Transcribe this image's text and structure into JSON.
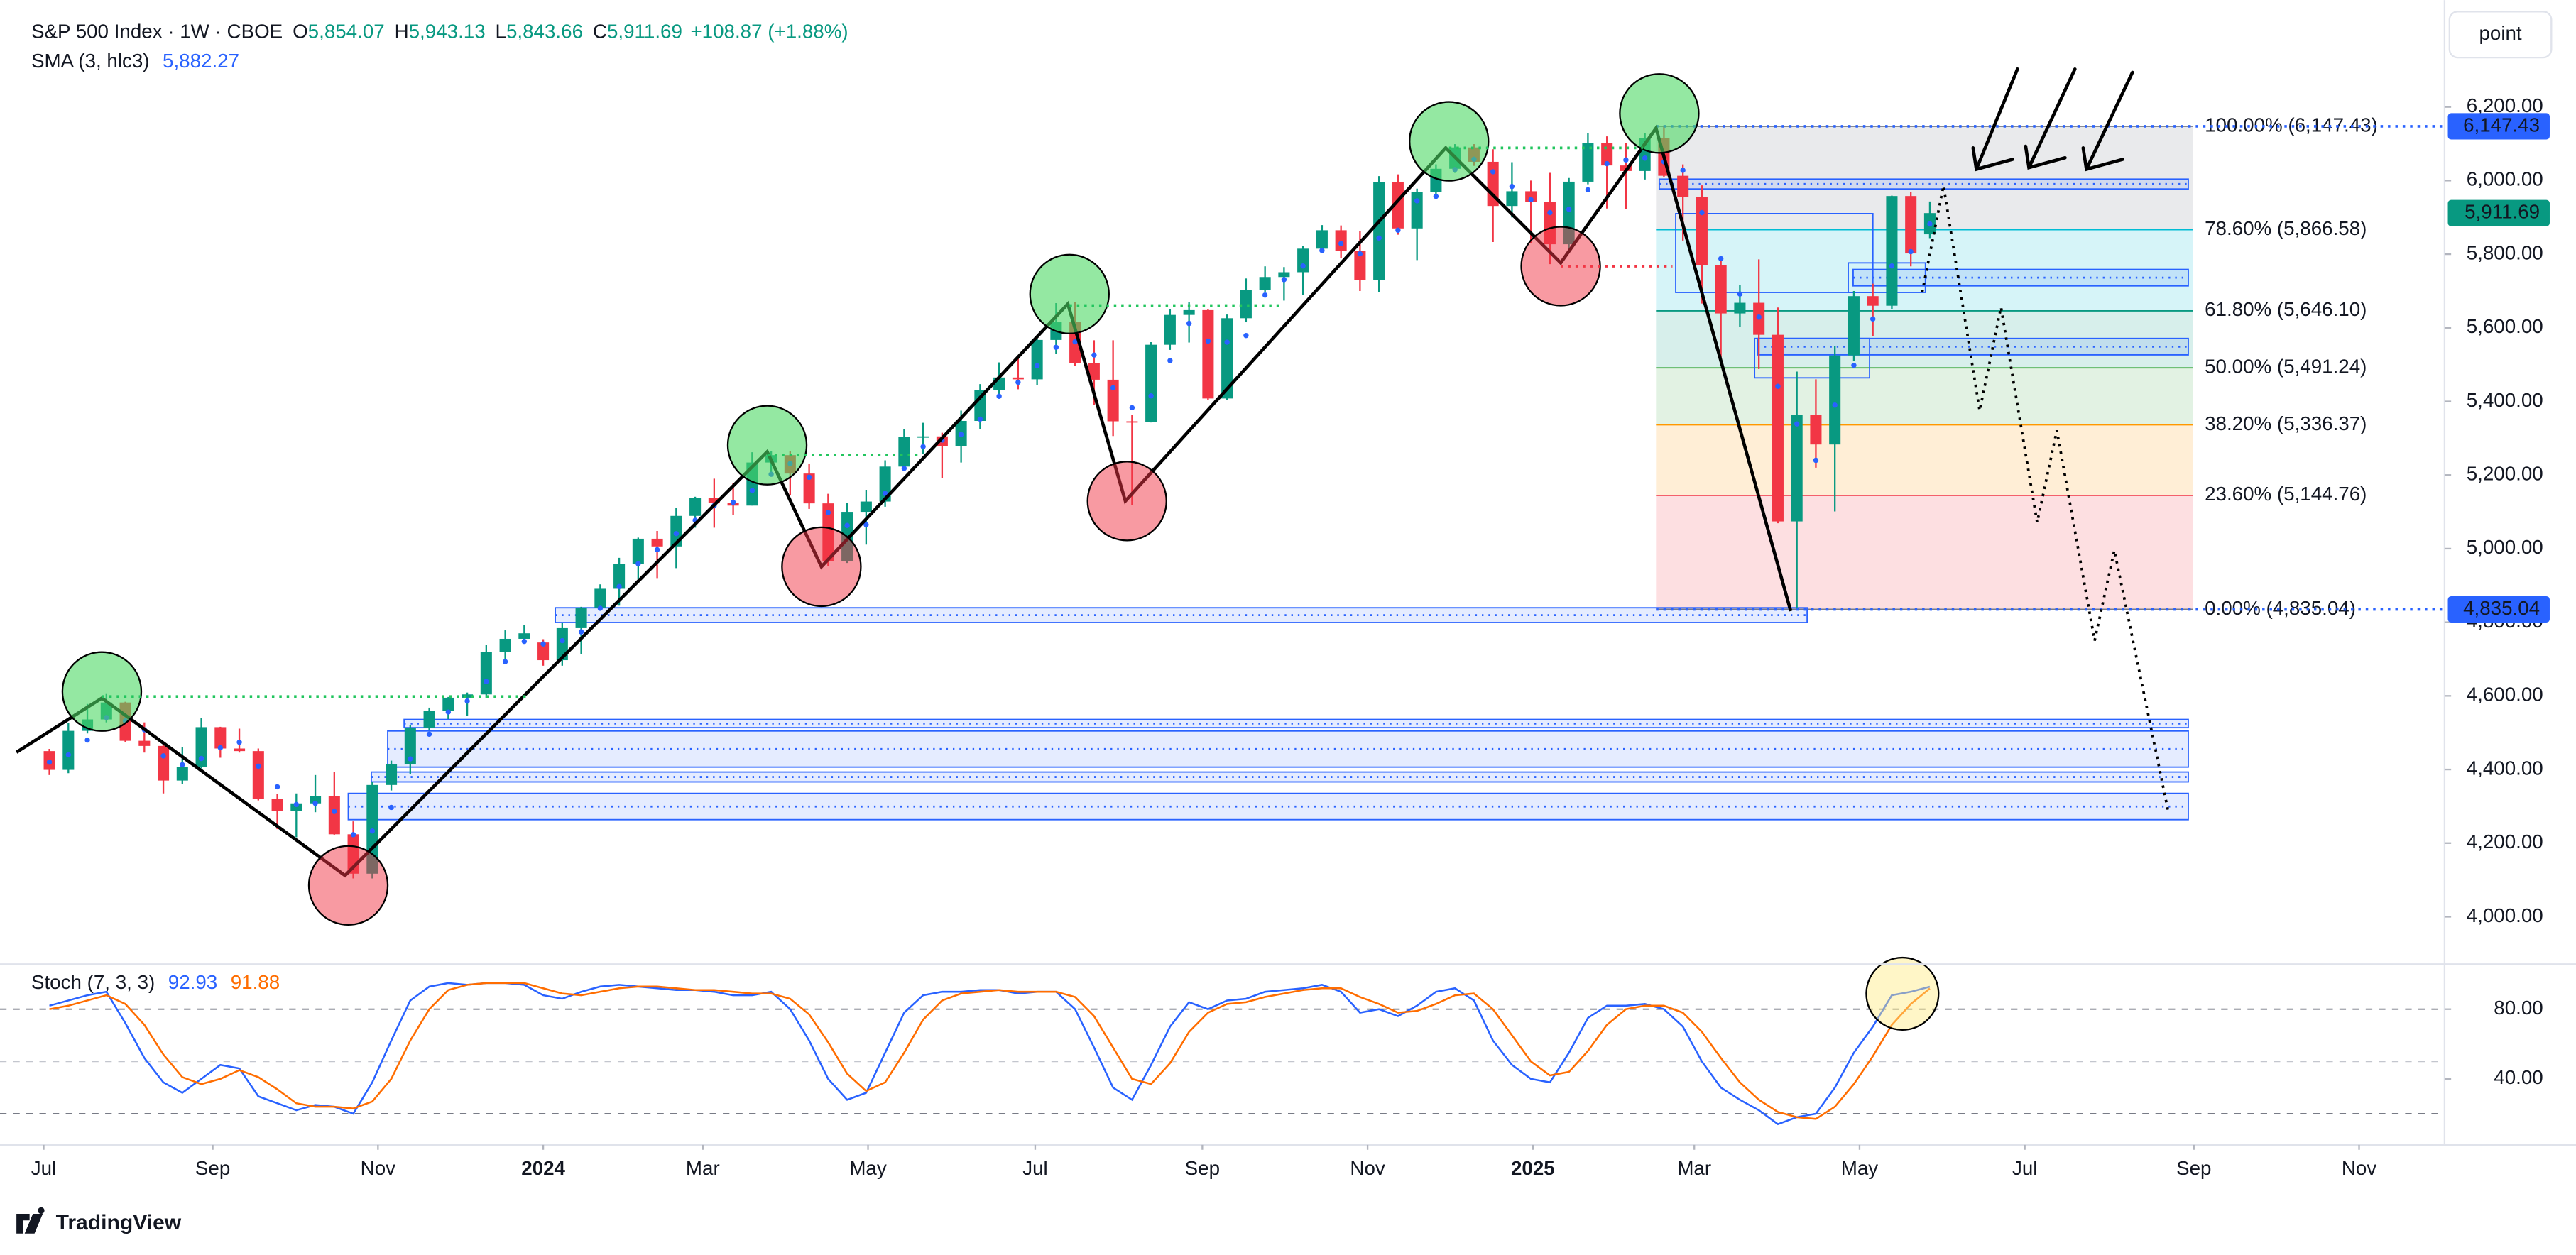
{
  "chart_data": [
    {
      "type": "candlestick",
      "title": "S&P 500 Index · 1W · CBOE",
      "ohlc_legend": [
        {
          "label": "O",
          "value": "5,854.07"
        },
        {
          "label": "H",
          "value": "5,943.13"
        },
        {
          "label": "L",
          "value": "5,843.66"
        },
        {
          "label": "C",
          "value": "5,911.69"
        }
      ],
      "change": "+108.87 (+1.88%)",
      "scale_mode": "point",
      "up_color": "#089981",
      "down_color": "#f23645",
      "xlim": [
        -2.6,
        126.1
      ],
      "ylim": [
        3880,
        6468
      ],
      "yticks": [
        {
          "value": 4000,
          "label": "4,000.00"
        },
        {
          "value": 4200,
          "label": "4,200.00"
        },
        {
          "value": 4400,
          "label": "4,400.00"
        },
        {
          "value": 4600,
          "label": "4,600.00"
        },
        {
          "value": 4800,
          "label": "4,800.00"
        },
        {
          "value": 5000,
          "label": "5,000.00"
        },
        {
          "value": 5200,
          "label": "5,200.00"
        },
        {
          "value": 5400,
          "label": "5,400.00"
        },
        {
          "value": 5600,
          "label": "5,600.00"
        },
        {
          "value": 5800,
          "label": "5,800.00"
        },
        {
          "value": 6000,
          "label": "6,000.00"
        },
        {
          "value": 6200,
          "label": "6,200.00"
        }
      ],
      "grid": false,
      "candles": [
        [
          4450,
          4456,
          4385,
          4399
        ],
        [
          4399,
          4527,
          4390,
          4505
        ],
        [
          4505,
          4578,
          4498,
          4536
        ],
        [
          4536,
          4607,
          4528,
          4582
        ],
        [
          4582,
          4584,
          4475,
          4478
        ],
        [
          4478,
          4528,
          4446,
          4464
        ],
        [
          4464,
          4474,
          4335,
          4370
        ],
        [
          4370,
          4461,
          4360,
          4406
        ],
        [
          4406,
          4541,
          4403,
          4515
        ],
        [
          4515,
          4516,
          4432,
          4457
        ],
        [
          4457,
          4511,
          4446,
          4450
        ],
        [
          4450,
          4457,
          4316,
          4320
        ],
        [
          4320,
          4334,
          4238,
          4288
        ],
        [
          4288,
          4335,
          4216,
          4308
        ],
        [
          4308,
          4385,
          4284,
          4327
        ],
        [
          4327,
          4394,
          4223,
          4224
        ],
        [
          4224,
          4259,
          4104,
          4117
        ],
        [
          4117,
          4366,
          4104,
          4358
        ],
        [
          4358,
          4424,
          4343,
          4415
        ],
        [
          4415,
          4521,
          4388,
          4514
        ],
        [
          4514,
          4568,
          4506,
          4559
        ],
        [
          4559,
          4597,
          4537,
          4595
        ],
        [
          4595,
          4609,
          4546,
          4604
        ],
        [
          4604,
          4739,
          4593,
          4719
        ],
        [
          4719,
          4778,
          4699,
          4755
        ],
        [
          4755,
          4793,
          4751,
          4770
        ],
        [
          4745,
          4754,
          4682,
          4697
        ],
        [
          4697,
          4798,
          4682,
          4784
        ],
        [
          4784,
          4842,
          4714,
          4840
        ],
        [
          4840,
          4903,
          4837,
          4891
        ],
        [
          4891,
          4975,
          4845,
          4959
        ],
        [
          4959,
          5030,
          4918,
          5027
        ],
        [
          5027,
          5048,
          4920,
          5006
        ],
        [
          5006,
          5111,
          4947,
          5089
        ],
        [
          5089,
          5141,
          5057,
          5137
        ],
        [
          5137,
          5190,
          5057,
          5124
        ],
        [
          5124,
          5179,
          5091,
          5117
        ],
        [
          5117,
          5262,
          5117,
          5234
        ],
        [
          5234,
          5264,
          5204,
          5254
        ],
        [
          5254,
          5264,
          5146,
          5204
        ],
        [
          5204,
          5230,
          5108,
          5123
        ],
        [
          5123,
          5149,
          4953,
          4967
        ],
        [
          4967,
          5124,
          4961,
          5100
        ],
        [
          5100,
          5160,
          5011,
          5128
        ],
        [
          5128,
          5240,
          5114,
          5223
        ],
        [
          5223,
          5325,
          5211,
          5303
        ],
        [
          5303,
          5342,
          5257,
          5305
        ],
        [
          5305,
          5315,
          5191,
          5278
        ],
        [
          5278,
          5375,
          5234,
          5347
        ],
        [
          5347,
          5447,
          5325,
          5431
        ],
        [
          5431,
          5506,
          5420,
          5465
        ],
        [
          5465,
          5524,
          5433,
          5460
        ],
        [
          5460,
          5570,
          5445,
          5567
        ],
        [
          5567,
          5667,
          5529,
          5615
        ],
        [
          5615,
          5669,
          5497,
          5505
        ],
        [
          5505,
          5566,
          5390,
          5459
        ],
        [
          5459,
          5566,
          5306,
          5346
        ],
        [
          5346,
          5364,
          5119,
          5344
        ],
        [
          5344,
          5561,
          5343,
          5554
        ],
        [
          5554,
          5651,
          5540,
          5635
        ],
        [
          5635,
          5669,
          5560,
          5648
        ],
        [
          5648,
          5651,
          5403,
          5408
        ],
        [
          5408,
          5636,
          5403,
          5626
        ],
        [
          5626,
          5734,
          5615,
          5703
        ],
        [
          5703,
          5767,
          5698,
          5738
        ],
        [
          5738,
          5765,
          5674,
          5751
        ],
        [
          5751,
          5822,
          5690,
          5815
        ],
        [
          5815,
          5879,
          5805,
          5865
        ],
        [
          5865,
          5878,
          5790,
          5808
        ],
        [
          5808,
          5862,
          5700,
          5729
        ],
        [
          5729,
          6012,
          5696,
          5995
        ],
        [
          5995,
          6017,
          5853,
          5870
        ],
        [
          5870,
          5978,
          5784,
          5969
        ],
        [
          5969,
          6044,
          5956,
          6032
        ],
        [
          6032,
          6099,
          6021,
          6090
        ],
        [
          6090,
          6099,
          6040,
          6051
        ],
        [
          6051,
          6085,
          5833,
          5931
        ],
        [
          5931,
          6050,
          5900,
          5971
        ],
        [
          5971,
          6000,
          5829,
          5942
        ],
        [
          5942,
          6021,
          5773,
          5827
        ],
        [
          5827,
          6007,
          5806,
          5997
        ],
        [
          5997,
          6128,
          5990,
          6101
        ],
        [
          6101,
          6120,
          5924,
          6041
        ],
        [
          6041,
          6101,
          5923,
          6026
        ],
        [
          6026,
          6128,
          6003,
          6115
        ],
        [
          6115,
          6147,
          6009,
          6013
        ],
        [
          6013,
          6044,
          5837,
          5955
        ],
        [
          5955,
          5987,
          5666,
          5770
        ],
        [
          5770,
          5782,
          5505,
          5639
        ],
        [
          5639,
          5716,
          5602,
          5668
        ],
        [
          5668,
          5786,
          5488,
          5581
        ],
        [
          5581,
          5655,
          5069,
          5074
        ],
        [
          5074,
          5481,
          4835,
          5363
        ],
        [
          5363,
          5460,
          5220,
          5283
        ],
        [
          5283,
          5551,
          5101,
          5525
        ],
        [
          5525,
          5700,
          5509,
          5686
        ],
        [
          5686,
          5720,
          5578,
          5660
        ],
        [
          5660,
          5959,
          5650,
          5958
        ],
        [
          5958,
          5968,
          5767,
          5802
        ],
        [
          5854.07,
          5943.13,
          5843.66,
          5911.69
        ]
      ],
      "overlay": {
        "name": "SMA (3, hlc3)",
        "value_label": "5,882.27",
        "color": "#2962ff",
        "values": [
          4420,
          4440,
          4480,
          4541,
          4532,
          4508,
          4437,
          4413,
          4430,
          4459,
          4474,
          4409,
          4353,
          4305,
          4308,
          4286,
          4223,
          4233,
          4297,
          4429,
          4496,
          4556,
          4586,
          4639,
          4693,
          4748,
          4741,
          4750,
          4774,
          4838,
          4897,
          4959,
          4997,
          5041,
          5077,
          5117,
          5126,
          5158,
          5202,
          5231,
          5194,
          5098,
          5063,
          5065,
          5150,
          5218,
          5277,
          5295,
          5310,
          5352,
          5414,
          5452,
          5497,
          5547,
          5562,
          5526,
          5437,
          5383,
          5415,
          5511,
          5612,
          5564,
          5561,
          5579,
          5689,
          5731,
          5768,
          5810,
          5829,
          5801,
          5844,
          5865,
          5945,
          5957,
          6030,
          6058,
          6024,
          5984,
          5948,
          5913,
          5922,
          5975,
          6046,
          6056,
          6061,
          6051,
          6028,
          5913,
          5788,
          5692,
          5629,
          5441,
          5339,
          5240,
          5390,
          5498,
          5624,
          5768,
          5807,
          5882.27
        ]
      },
      "fib": [
        {
          "label": "100.00% (6,147.43)",
          "value": 6147.43,
          "color": "#787b86"
        },
        {
          "label": "78.60% (5,866.58)",
          "value": 5866.58,
          "color": "#00bcd4"
        },
        {
          "label": "61.80% (5,646.10)",
          "value": 5646.1,
          "color": "#089981"
        },
        {
          "label": "50.00% (5,491.24)",
          "value": 5491.24,
          "color": "#4caf50"
        },
        {
          "label": "38.20% (5,336.37)",
          "value": 5336.37,
          "color": "#ff9800"
        },
        {
          "label": "23.60% (5,144.76)",
          "value": 5144.76,
          "color": "#f23645"
        },
        {
          "label": "0.00% (4,835.04)",
          "value": 4835.04,
          "color": "#787b86"
        }
      ],
      "price_markers": [
        {
          "value": 6147.43,
          "label": "6,147.43",
          "color": "#2962ff",
          "dotted_line": true
        },
        {
          "value": 5911.69,
          "label": "5,911.69",
          "color": "#089981",
          "dotted_line": false
        },
        {
          "value": 4835.04,
          "label": "4,835.04",
          "color": "#2962ff",
          "dotted_line": true
        }
      ]
    },
    {
      "type": "line",
      "title": "Stoch (7, 3, 3)",
      "xlim": [
        -2.6,
        126.1
      ],
      "xticks": [
        {
          "value": -0.3,
          "label": "Jul"
        },
        {
          "value": 8.6,
          "label": "Sep"
        },
        {
          "value": 17.3,
          "label": "Nov"
        },
        {
          "value": 26.0,
          "label": "2024"
        },
        {
          "value": 34.4,
          "label": "Mar"
        },
        {
          "value": 43.1,
          "label": "May"
        },
        {
          "value": 51.9,
          "label": "Jul"
        },
        {
          "value": 60.7,
          "label": "Sep"
        },
        {
          "value": 69.4,
          "label": "Nov"
        },
        {
          "value": 78.1,
          "label": "2025"
        },
        {
          "value": 86.6,
          "label": "Mar"
        },
        {
          "value": 95.3,
          "label": "May"
        },
        {
          "value": 104.0,
          "label": "Jul"
        },
        {
          "value": 112.9,
          "label": "Sep"
        },
        {
          "value": 121.6,
          "label": "Nov"
        }
      ],
      "ylim": [
        4,
        103
      ],
      "yticks": [
        {
          "value": 40,
          "label": "40.00"
        },
        {
          "value": 80,
          "label": "80.00"
        }
      ],
      "bands": [
        80,
        50,
        20
      ],
      "series": [
        {
          "color": "#2962ff",
          "value_label": "92.93",
          "values": [
            82,
            85,
            88,
            90,
            72,
            52,
            38,
            32,
            40,
            48,
            46,
            30,
            26,
            22,
            25,
            24,
            20,
            38,
            62,
            85,
            93,
            95,
            94,
            95,
            95,
            94,
            88,
            86,
            90,
            93,
            94,
            93,
            92,
            91,
            91,
            90,
            88,
            88,
            90,
            80,
            62,
            40,
            28,
            32,
            55,
            78,
            88,
            90,
            90,
            91,
            91,
            89,
            90,
            90,
            80,
            58,
            35,
            28,
            48,
            70,
            84,
            80,
            85,
            86,
            90,
            91,
            92,
            94,
            90,
            78,
            80,
            76,
            82,
            90,
            92,
            85,
            62,
            48,
            40,
            38,
            55,
            75,
            82,
            82,
            83,
            80,
            70,
            50,
            35,
            28,
            22,
            14,
            18,
            20,
            35,
            55,
            70,
            88,
            90,
            92.93
          ]
        },
        {
          "color": "#ff6d00",
          "value_label": "91.88",
          "values": [
            80,
            82,
            85,
            88,
            83,
            71,
            54,
            41,
            37,
            40,
            45,
            41,
            34,
            26,
            24,
            24,
            23,
            27,
            40,
            62,
            80,
            91,
            94,
            95,
            95,
            95,
            92,
            89,
            88,
            90,
            92,
            93,
            93,
            92,
            91,
            91,
            90,
            89,
            89,
            86,
            77,
            61,
            43,
            33,
            38,
            55,
            74,
            85,
            89,
            90,
            91,
            90,
            90,
            90,
            87,
            76,
            58,
            40,
            37,
            49,
            67,
            78,
            83,
            84,
            87,
            89,
            91,
            92,
            92,
            87,
            83,
            78,
            79,
            83,
            88,
            89,
            80,
            65,
            50,
            42,
            44,
            56,
            71,
            80,
            82,
            82,
            78,
            67,
            52,
            38,
            28,
            21,
            18,
            17,
            24,
            37,
            53,
            71,
            83,
            91.88
          ]
        }
      ]
    }
  ],
  "footer": {
    "brand": "TradingView"
  }
}
